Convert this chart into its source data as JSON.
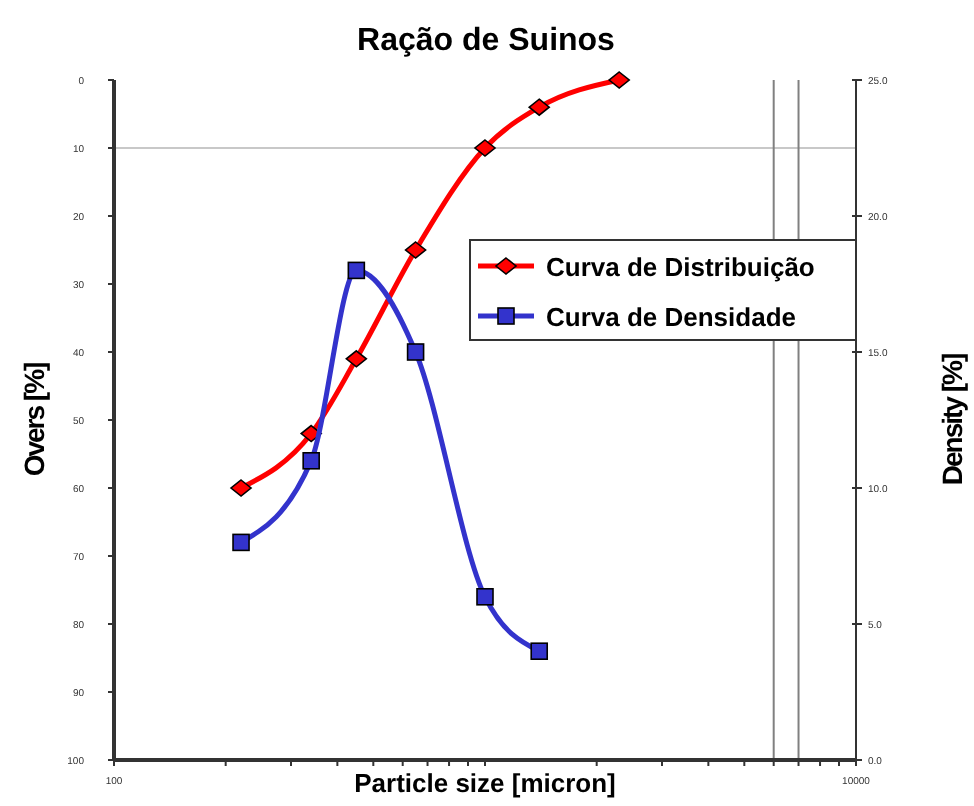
{
  "chart_data": {
    "type": "line",
    "title": "Ração de Suinos",
    "xlabel": "Particle size [micron]",
    "ylabel": "Overs [%]",
    "y2label": "Density [%]",
    "log": "x",
    "xlim": [
      100,
      10000
    ],
    "xticks": [
      100,
      {
        "value": 200,
        "label": null
      },
      {
        "value": 300,
        "label": null
      },
      {
        "value": 400,
        "label": null
      },
      {
        "value": 500,
        "label": null
      },
      {
        "value": 600,
        "label": null
      },
      {
        "value": 700,
        "label": null
      },
      {
        "value": 800,
        "label": null
      },
      {
        "value": 900,
        "label": null
      },
      {
        "value": 1000,
        "label": null
      },
      {
        "value": 2000,
        "label": null
      },
      {
        "value": 3000,
        "label": null
      },
      {
        "value": 4000,
        "label": null
      },
      {
        "value": 5000,
        "label": null
      },
      {
        "value": 6000,
        "label": null
      },
      {
        "value": 7000,
        "label": null
      },
      {
        "value": 8000,
        "label": null
      },
      {
        "value": 9000,
        "label": null
      },
      10000
    ],
    "ylim": [
      100,
      0
    ],
    "yticks": [
      0,
      10,
      20,
      30,
      40,
      50,
      60,
      70,
      80,
      90,
      100
    ],
    "y2lim": [
      0,
      25
    ],
    "y2ticks": [
      {
        "value": 0,
        "label": "0.0"
      },
      {
        "value": 5,
        "label": "5.0"
      },
      {
        "value": 10,
        "label": "10.0"
      },
      {
        "value": 15,
        "label": "15.0"
      },
      {
        "value": 20,
        "label": "20.0"
      },
      {
        "value": 25,
        "label": "25.0"
      }
    ],
    "grid": false,
    "legend": "right",
    "line_style": "solid",
    "ref_lines": [
      {
        "axis": "y",
        "value": 10,
        "color": "#c8c8c8"
      },
      {
        "axis": "x",
        "value": 6000,
        "color": "#808080"
      },
      {
        "axis": "x",
        "value": 7000,
        "color": "#808080"
      }
    ],
    "series": [
      {
        "name": "Curva de Distribuição",
        "color": "#ff0000",
        "marker": "diamond",
        "x": [
          220,
          340,
          450,
          650,
          1000,
          1400,
          2300
        ],
        "values": [
          60,
          52,
          41,
          25,
          10,
          4,
          0
        ]
      },
      {
        "name": "Curva de Densidade",
        "color": "#3333cc",
        "marker": "square",
        "axis": "y2",
        "x": [
          220,
          340,
          450,
          650,
          1000,
          1400
        ],
        "values": [
          8,
          11,
          18,
          15,
          6,
          4
        ]
      }
    ]
  }
}
